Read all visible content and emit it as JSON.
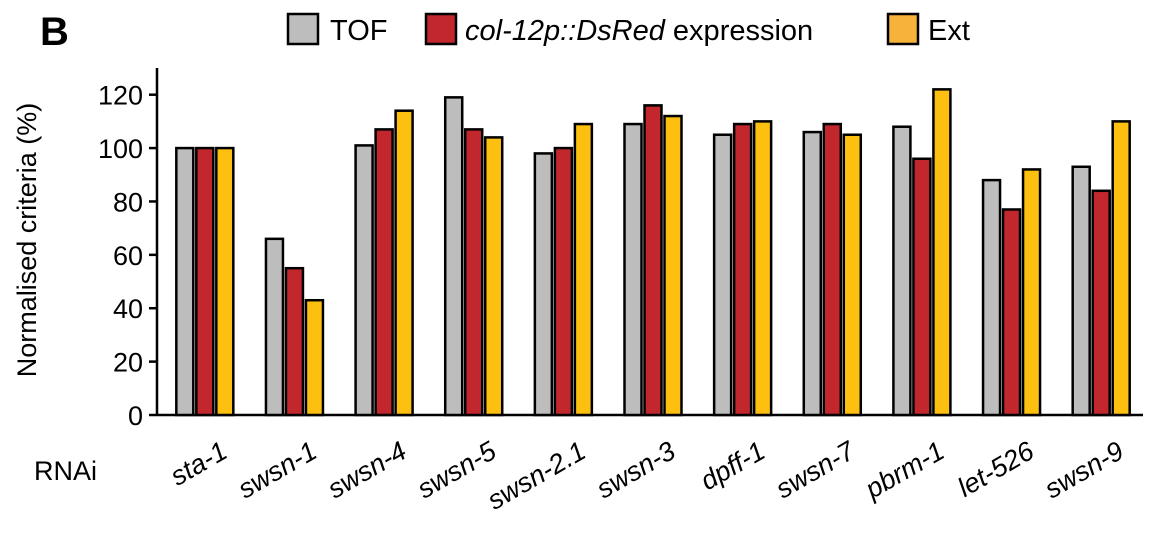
{
  "panel_label": "B",
  "x_prefix": "RNAi",
  "legend": [
    {
      "label": "TOF",
      "italic": "",
      "suffix": "",
      "color": "#bdbdbd"
    },
    {
      "label": "",
      "italic": "col-12p::DsRed",
      "suffix": " expression",
      "color": "#c1272d"
    },
    {
      "label": "Ext",
      "italic": "",
      "suffix": "",
      "color": "#f7b23b"
    }
  ],
  "chart_data": {
    "type": "bar",
    "ylabel": "Normalised criteria (%)",
    "xlabel": "RNAi",
    "ylim": [
      0,
      130
    ],
    "yticks": [
      0,
      20,
      40,
      60,
      80,
      100,
      120
    ],
    "grid": false,
    "legend_position": "top",
    "categories": [
      "sta-1",
      "swsn-1",
      "swsn-4",
      "swsn-5",
      "swsn-2.1",
      "swsn-3",
      "dpff-1",
      "swsn-7",
      "pbrm-1",
      "let-526",
      "swsn-9"
    ],
    "series": [
      {
        "name": "TOF",
        "color": "#bdbdbd",
        "values": [
          100,
          66,
          101,
          119,
          98,
          109,
          105,
          106,
          108,
          88,
          93
        ]
      },
      {
        "name": "col-12p::DsRed expression",
        "color": "#c1272d",
        "values": [
          100,
          55,
          107,
          107,
          100,
          116,
          109,
          109,
          96,
          77,
          84
        ]
      },
      {
        "name": "Ext",
        "color": "#fdc010",
        "values": [
          100,
          43,
          114,
          104,
          109,
          112,
          110,
          105,
          122,
          92,
          110
        ]
      }
    ]
  }
}
